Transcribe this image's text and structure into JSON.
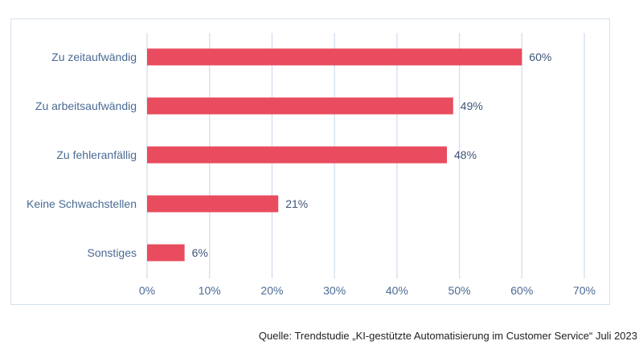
{
  "chart_data": {
    "type": "bar",
    "orientation": "horizontal",
    "categories": [
      "Zu zeitaufwändig",
      "Zu arbeitsaufwändig",
      "Zu fehleranfällig",
      "Keine Schwachstellen",
      "Sonstiges"
    ],
    "values": [
      60,
      49,
      48,
      21,
      6
    ],
    "data_labels": [
      "60%",
      "49%",
      "48%",
      "21%",
      "6%"
    ],
    "xlim": [
      0,
      70
    ],
    "xticks": [
      0,
      10,
      20,
      30,
      40,
      50,
      60,
      70
    ],
    "xtick_labels": [
      "0%",
      "10%",
      "20%",
      "30%",
      "40%",
      "50%",
      "60%",
      "70%"
    ],
    "grid": "vertical",
    "bar_color": "#e84c5e",
    "text_color": "#4a6a94",
    "grid_color": "#d3deeb"
  },
  "source": "Quelle: Trendstudie „KI-gestützte Automatisierung im Customer Service“ Juli 2023"
}
